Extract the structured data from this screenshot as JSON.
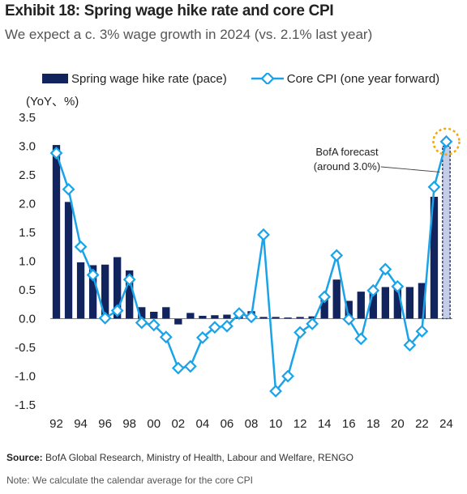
{
  "title": "Exhibit 18: Spring wage hike rate and core CPI",
  "subtitle": "We expect a c. 3% wage growth in 2024 (vs. 2.1% last year)",
  "legend": {
    "bar_label": "Spring wage hike rate (pace)",
    "line_label": "Core CPI (one year forward)"
  },
  "unit_label": "(YoY、%)",
  "annotation": {
    "line1": "BofA forecast",
    "line2": "(around 3.0%)"
  },
  "footer": {
    "source_label": "Source:",
    "source_text": " BofA Global Research, Ministry of Health, Labour and Welfare, RENGO",
    "note": "Note: We calculate the calendar average for the core CPI"
  },
  "colors": {
    "bar": "#12245e",
    "forecast_bar": "#c5cde6",
    "line": "#1aa3e8",
    "highlight": "#f5a800"
  },
  "chart_data": {
    "type": "bar",
    "x": [
      1992,
      1993,
      1994,
      1995,
      1996,
      1997,
      1998,
      1999,
      2000,
      2001,
      2002,
      2003,
      2004,
      2005,
      2006,
      2007,
      2008,
      2009,
      2010,
      2011,
      2012,
      2013,
      2014,
      2015,
      2016,
      2017,
      2018,
      2019,
      2020,
      2021,
      2022,
      2023,
      2024
    ],
    "x_tick_labels": [
      "92",
      "94",
      "96",
      "98",
      "00",
      "02",
      "04",
      "06",
      "08",
      "10",
      "12",
      "14",
      "16",
      "18",
      "20",
      "22",
      "24"
    ],
    "y_ticks": [
      "3.5",
      "3.0",
      "2.5",
      "2.0",
      "1.5",
      "1.0",
      "0.5",
      "0.0",
      "-0.5",
      "-1.0",
      "-1.5"
    ],
    "ylim": [
      -1.5,
      3.5
    ],
    "series": [
      {
        "name": "Spring wage hike rate (pace)",
        "type": "bar",
        "values": [
          3.02,
          2.03,
          0.98,
          0.93,
          0.94,
          1.07,
          0.84,
          0.2,
          0.12,
          0.2,
          -0.1,
          0.1,
          0.05,
          0.06,
          0.07,
          0.12,
          0.13,
          0.03,
          0.03,
          0.02,
          0.03,
          0.04,
          0.4,
          0.68,
          0.31,
          0.47,
          0.49,
          0.55,
          0.55,
          0.55,
          0.62,
          2.12,
          3.0
        ]
      },
      {
        "name": "Core CPI (one year forward)",
        "type": "line",
        "values": [
          2.88,
          2.25,
          1.25,
          0.76,
          0.01,
          0.14,
          0.68,
          -0.07,
          -0.11,
          -0.32,
          -0.86,
          -0.83,
          -0.33,
          -0.15,
          -0.13,
          0.09,
          0.03,
          1.46,
          -1.26,
          -1.0,
          -0.24,
          -0.09,
          0.38,
          1.1,
          -0.01,
          -0.35,
          0.49,
          0.86,
          0.56,
          -0.46,
          -0.22,
          2.29,
          3.08
        ]
      }
    ],
    "forecast_index": 32,
    "annotation": "BofA forecast (around 3.0%)"
  }
}
